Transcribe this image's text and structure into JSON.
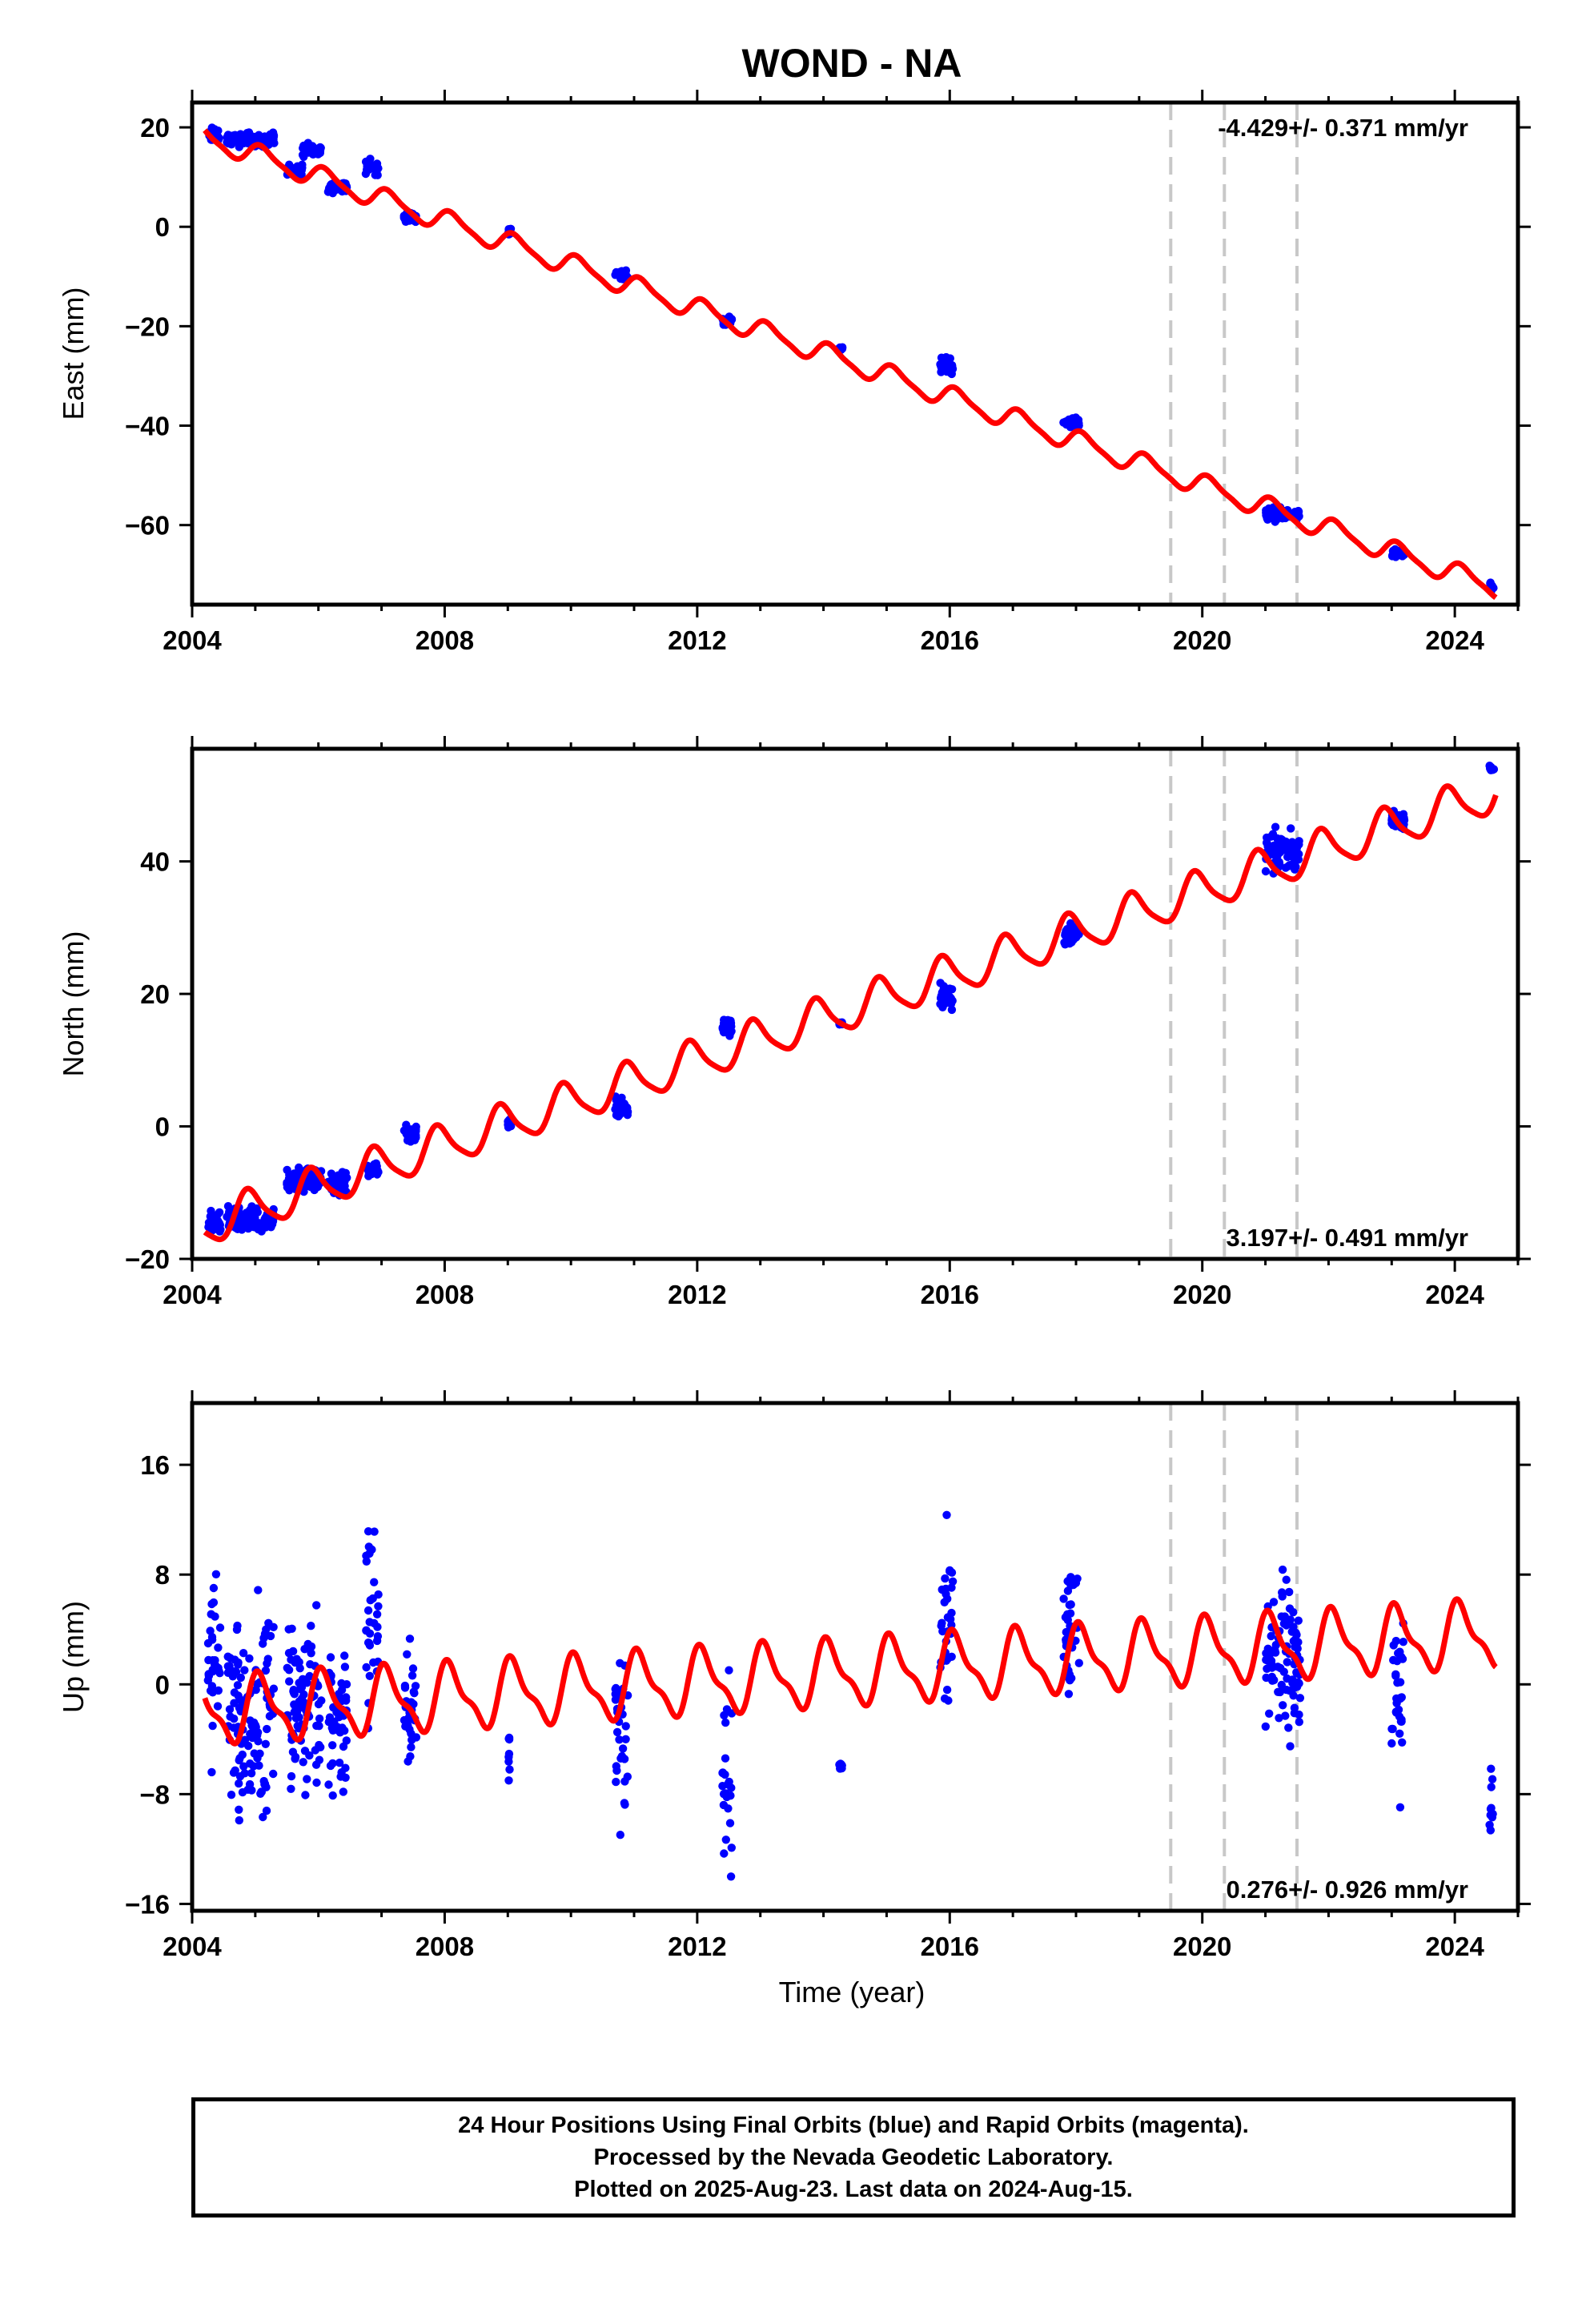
{
  "chart_data": {
    "title": "WOND - NA",
    "xlabel": "Time (year)",
    "xlim": [
      2004,
      2025
    ],
    "x_ticks": [
      2004,
      2008,
      2012,
      2016,
      2020,
      2024
    ],
    "equipment_change_years": [
      2019.5,
      2020.35,
      2021.5
    ],
    "panels": [
      {
        "name": "east",
        "type": "scatter",
        "ylabel": "East (mm)",
        "ylim": [
          -76,
          25
        ],
        "y_ticks": [
          20,
          0,
          -20,
          -40,
          -60
        ],
        "rate_label": "-4.429+/- 0.371 mm/yr",
        "rate_position": "top-right",
        "model": {
          "rate": -4.429,
          "offset": 18.0,
          "annual_amplitude": 2.0,
          "semiannual_amplitude": 0.5,
          "phase": 0.8
        },
        "data_segments": [
          {
            "start": 2004.25,
            "end": 2004.45,
            "mean": 18.5,
            "spread": 4
          },
          {
            "start": 2004.55,
            "end": 2005.3,
            "mean": 17.5,
            "spread": 4
          },
          {
            "start": 2005.5,
            "end": 2005.75,
            "mean": 11.5,
            "spread": 3
          },
          {
            "start": 2005.75,
            "end": 2006.05,
            "mean": 15.5,
            "spread": 4
          },
          {
            "start": 2006.15,
            "end": 2006.45,
            "mean": 8.0,
            "spread": 4
          },
          {
            "start": 2006.75,
            "end": 2006.95,
            "mean": 12.0,
            "spread": 4
          },
          {
            "start": 2007.35,
            "end": 2007.55,
            "mean": 2.0,
            "spread": 4
          },
          {
            "start": 2009.0,
            "end": 2009.05,
            "mean": -1.0,
            "spread": 2
          },
          {
            "start": 2010.7,
            "end": 2010.9,
            "mean": -9.5,
            "spread": 3
          },
          {
            "start": 2012.4,
            "end": 2012.55,
            "mean": -19.0,
            "spread": 3
          },
          {
            "start": 2014.25,
            "end": 2014.3,
            "mean": -24.5,
            "spread": 1
          },
          {
            "start": 2015.85,
            "end": 2016.05,
            "mean": -28.0,
            "spread": 5
          },
          {
            "start": 2017.8,
            "end": 2018.05,
            "mean": -39.5,
            "spread": 3
          },
          {
            "start": 2021.0,
            "end": 2021.55,
            "mean": -58.0,
            "spread": 4
          },
          {
            "start": 2023.0,
            "end": 2023.2,
            "mean": -65.5,
            "spread": 3
          },
          {
            "start": 2024.55,
            "end": 2024.62,
            "mean": -72.5,
            "spread": 3
          }
        ]
      },
      {
        "name": "north",
        "type": "scatter",
        "ylabel": "North (mm)",
        "ylim": [
          -20,
          57
        ],
        "y_ticks": [
          40,
          20,
          0,
          -20
        ],
        "rate_label": "3.197+/- 0.491 mm/yr",
        "rate_position": "bottom-right",
        "model": {
          "rate": 3.197,
          "offset": -15.0,
          "annual_amplitude": 3.0,
          "semiannual_amplitude": 0.6,
          "phase": 2.2
        },
        "data_segments": [
          {
            "start": 2004.25,
            "end": 2004.45,
            "mean": -14.5,
            "spread": 5
          },
          {
            "start": 2004.55,
            "end": 2005.3,
            "mean": -14.0,
            "spread": 5
          },
          {
            "start": 2005.5,
            "end": 2006.05,
            "mean": -8.0,
            "spread": 5
          },
          {
            "start": 2006.15,
            "end": 2006.45,
            "mean": -8.5,
            "spread": 6
          },
          {
            "start": 2006.75,
            "end": 2006.95,
            "mean": -6.5,
            "spread": 4
          },
          {
            "start": 2007.35,
            "end": 2007.55,
            "mean": -1.0,
            "spread": 4
          },
          {
            "start": 2009.0,
            "end": 2009.05,
            "mean": 0.5,
            "spread": 3
          },
          {
            "start": 2010.7,
            "end": 2010.9,
            "mean": 3.0,
            "spread": 6
          },
          {
            "start": 2012.4,
            "end": 2012.55,
            "mean": 15.0,
            "spread": 4
          },
          {
            "start": 2014.25,
            "end": 2014.3,
            "mean": 15.5,
            "spread": 1
          },
          {
            "start": 2015.85,
            "end": 2016.05,
            "mean": 19.5,
            "spread": 6
          },
          {
            "start": 2017.8,
            "end": 2018.05,
            "mean": 29.0,
            "spread": 5
          },
          {
            "start": 2021.0,
            "end": 2021.55,
            "mean": 41.5,
            "spread": 8
          },
          {
            "start": 2023.0,
            "end": 2023.2,
            "mean": 46.0,
            "spread": 4
          },
          {
            "start": 2024.55,
            "end": 2024.62,
            "mean": 54.0,
            "spread": 2
          }
        ]
      },
      {
        "name": "up",
        "type": "scatter",
        "ylabel": "Up (mm)",
        "ylim": [
          -16.5,
          20.5
        ],
        "y_ticks": [
          16,
          8,
          0,
          -8,
          -16
        ],
        "rate_label": "0.276+/- 0.926 mm/yr",
        "rate_position": "bottom-right",
        "model": {
          "rate": 0.276,
          "offset": -2.0,
          "annual_amplitude": 2.2,
          "semiannual_amplitude": 0.8,
          "phase": 1.0
        },
        "data_segments": [
          {
            "start": 2004.25,
            "end": 2004.45,
            "mean": 1.5,
            "spread": 20
          },
          {
            "start": 2004.55,
            "end": 2005.3,
            "mean": -1.5,
            "spread": 22
          },
          {
            "start": 2005.5,
            "end": 2006.05,
            "mean": -2.0,
            "spread": 20
          },
          {
            "start": 2006.15,
            "end": 2006.45,
            "mean": -3.0,
            "spread": 18
          },
          {
            "start": 2006.75,
            "end": 2006.95,
            "mean": 5.0,
            "spread": 20
          },
          {
            "start": 2007.35,
            "end": 2007.55,
            "mean": -2.0,
            "spread": 12
          },
          {
            "start": 2009.0,
            "end": 2009.05,
            "mean": -6.0,
            "spread": 10
          },
          {
            "start": 2010.7,
            "end": 2010.9,
            "mean": -4.0,
            "spread": 22
          },
          {
            "start": 2012.4,
            "end": 2012.55,
            "mean": -7.0,
            "spread": 18
          },
          {
            "start": 2014.25,
            "end": 2014.3,
            "mean": -6.0,
            "spread": 1
          },
          {
            "start": 2015.85,
            "end": 2016.05,
            "mean": 6.0,
            "spread": 20
          },
          {
            "start": 2017.8,
            "end": 2018.05,
            "mean": 3.5,
            "spread": 16
          },
          {
            "start": 2021.0,
            "end": 2021.55,
            "mean": 2.0,
            "spread": 18
          },
          {
            "start": 2023.0,
            "end": 2023.2,
            "mean": -1.0,
            "spread": 20
          },
          {
            "start": 2024.55,
            "end": 2024.62,
            "mean": -9.0,
            "spread": 10
          }
        ]
      }
    ]
  },
  "footer": {
    "line1": "24 Hour Positions Using Final Orbits (blue) and Rapid Orbits (magenta).",
    "line2": "Processed by the Nevada Geodetic Laboratory.",
    "line3": "Plotted on 2025-Aug-23. Last data on 2024-Aug-15."
  },
  "colors": {
    "data_points": "#0000ff",
    "model_line": "#ff0000",
    "equipment_lines": "#c8c8c8",
    "frame": "#000000"
  }
}
